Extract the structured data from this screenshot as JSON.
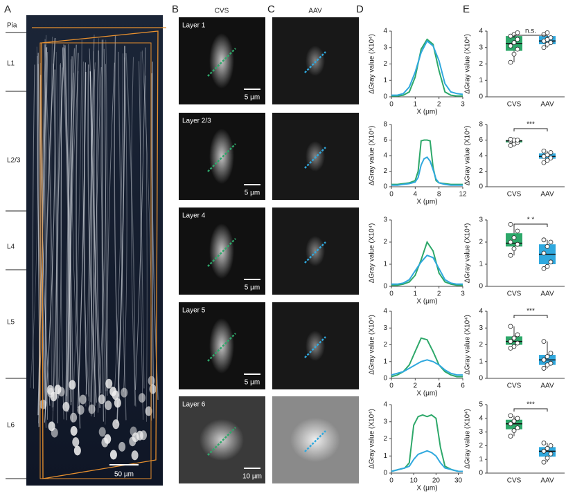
{
  "figure": {
    "panel_letters": [
      "A",
      "B",
      "C",
      "D",
      "E"
    ],
    "column_headers": [
      "CVS",
      "AAV"
    ],
    "cortex_layers": [
      "Pia",
      "L1",
      "L2/3",
      "L4",
      "L5",
      "L6"
    ],
    "scale_bar_a": "50 µm",
    "rows": [
      {
        "layer": "Layer 1",
        "scale_bar": "5 µm"
      },
      {
        "layer": "Layer 2/3",
        "scale_bar": "5 µm"
      },
      {
        "layer": "Layer 4",
        "scale_bar": "5 µm"
      },
      {
        "layer": "Layer 5",
        "scale_bar": "5 µm"
      },
      {
        "layer": "Layer 6",
        "scale_bar": "10 µm"
      }
    ]
  },
  "chart_data": [
    {
      "type": "line",
      "y_label": "ΔGray value (X10⁴)",
      "x_label": "X (μm)",
      "x": [
        0,
        0.25,
        0.5,
        0.75,
        1,
        1.25,
        1.5,
        1.75,
        2,
        2.25,
        2.5,
        2.75,
        3
      ],
      "xlim": [
        0,
        3
      ],
      "xticks": [
        0,
        1,
        2,
        3
      ],
      "ylim": [
        0,
        4
      ],
      "yticks": [
        0,
        1,
        2,
        3,
        4
      ],
      "series": [
        {
          "color": "#2ea86a",
          "values": [
            0.05,
            0.05,
            0.1,
            0.3,
            1.2,
            2.9,
            3.5,
            3.2,
            1.6,
            0.3,
            0.1,
            0.05,
            0.05
          ]
        },
        {
          "color": "#2fa8de",
          "values": [
            0.1,
            0.1,
            0.2,
            0.6,
            1.5,
            2.7,
            3.4,
            3.1,
            2.2,
            0.8,
            0.3,
            0.2,
            0.15
          ]
        }
      ]
    },
    {
      "type": "box",
      "y_label": "ΔGray value (X10⁴)",
      "categories": [
        "CVS",
        "AAV"
      ],
      "annotation": "n.s.",
      "ylim": [
        0,
        4
      ],
      "yticks": [
        0,
        1,
        2,
        3,
        4
      ],
      "boxes": [
        {
          "color": "#2ea86a",
          "whisker_low": 2.1,
          "q1": 2.8,
          "median": 3.25,
          "q3": 3.7,
          "whisker_high": 3.9,
          "points": [
            2.1,
            2.6,
            2.9,
            3.1,
            3.3,
            3.5,
            3.7,
            3.8,
            3.9
          ]
        },
        {
          "color": "#2fa8de",
          "whisker_low": 3.0,
          "q1": 3.2,
          "median": 3.4,
          "q3": 3.7,
          "whisker_high": 3.9,
          "points": [
            3.0,
            3.2,
            3.3,
            3.4,
            3.5,
            3.6,
            3.8,
            3.9
          ]
        }
      ]
    },
    {
      "type": "line",
      "y_label": "ΔGray value (X10⁴)",
      "x_label": "X (μm)",
      "x": [
        0,
        1,
        2,
        3,
        4,
        4.5,
        5,
        5.5,
        6,
        6.5,
        7,
        7.5,
        8,
        9,
        10,
        11,
        12
      ],
      "xlim": [
        0,
        12
      ],
      "xticks": [
        0,
        4,
        8,
        12
      ],
      "ylim": [
        0,
        8
      ],
      "yticks": [
        0,
        2,
        4,
        6,
        8
      ],
      "series": [
        {
          "color": "#2ea86a",
          "values": [
            0.3,
            0.3,
            0.4,
            0.5,
            0.8,
            2,
            5.9,
            6,
            6,
            5.9,
            2.5,
            0.8,
            0.5,
            0.4,
            0.3,
            0.3,
            0.3
          ]
        },
        {
          "color": "#2fa8de",
          "values": [
            0.2,
            0.2,
            0.3,
            0.4,
            0.6,
            1.2,
            2.8,
            3.6,
            3.8,
            3.3,
            2.2,
            1,
            0.5,
            0.3,
            0.2,
            0.2,
            0.2
          ]
        }
      ]
    },
    {
      "type": "box",
      "y_label": "ΔGray value (X10⁴)",
      "categories": [
        "CVS",
        "AAV"
      ],
      "annotation": "***",
      "ylim": [
        0,
        8
      ],
      "yticks": [
        0,
        2,
        4,
        6,
        8
      ],
      "boxes": [
        {
          "color": "#2ea86a",
          "whisker_low": 5.3,
          "q1": 5.7,
          "median": 5.9,
          "q3": 6.0,
          "whisker_high": 6.1,
          "points": [
            5.3,
            5.5,
            5.7,
            5.9,
            6.0,
            6.0,
            6.1
          ]
        },
        {
          "color": "#2fa8de",
          "whisker_low": 3.1,
          "q1": 3.6,
          "median": 3.9,
          "q3": 4.3,
          "whisker_high": 4.6,
          "points": [
            3.1,
            3.4,
            3.7,
            3.9,
            4.1,
            4.4,
            4.6
          ]
        }
      ]
    },
    {
      "type": "line",
      "y_label": "ΔGray value (X10⁴)",
      "x_label": "X (μm)",
      "x": [
        0,
        0.25,
        0.5,
        0.75,
        1,
        1.25,
        1.5,
        1.75,
        2,
        2.25,
        2.5,
        2.75,
        3
      ],
      "xlim": [
        0,
        3
      ],
      "xticks": [
        0,
        1,
        2,
        3
      ],
      "ylim": [
        0,
        3
      ],
      "yticks": [
        0,
        1,
        2,
        3
      ],
      "series": [
        {
          "color": "#2ea86a",
          "values": [
            0.05,
            0.05,
            0.1,
            0.2,
            0.5,
            1.2,
            2.0,
            1.6,
            0.6,
            0.2,
            0.1,
            0.05,
            0.05
          ]
        },
        {
          "color": "#2fa8de",
          "values": [
            0.1,
            0.1,
            0.15,
            0.3,
            0.7,
            1.1,
            1.4,
            1.3,
            0.8,
            0.3,
            0.15,
            0.1,
            0.1
          ]
        }
      ]
    },
    {
      "type": "box",
      "y_label": "ΔGray value (X10⁴)",
      "categories": [
        "CVS",
        "AAV"
      ],
      "annotation": "* *",
      "ylim": [
        0,
        3
      ],
      "yticks": [
        0,
        1,
        2,
        3
      ],
      "boxes": [
        {
          "color": "#2ea86a",
          "whisker_low": 1.4,
          "q1": 1.8,
          "median": 1.95,
          "q3": 2.4,
          "whisker_high": 2.8,
          "points": [
            1.4,
            1.7,
            1.9,
            2.0,
            2.2,
            2.5,
            2.8
          ]
        },
        {
          "color": "#2fa8de",
          "whisker_low": 0.8,
          "q1": 1.0,
          "median": 1.45,
          "q3": 1.9,
          "whisker_high": 2.1,
          "points": [
            0.8,
            0.9,
            1.1,
            1.5,
            1.8,
            2.0,
            2.1
          ]
        }
      ]
    },
    {
      "type": "line",
      "y_label": "ΔGray value (X10⁴)",
      "x_label": "X (μm)",
      "x": [
        0,
        0.5,
        1,
        1.5,
        2,
        2.5,
        3,
        3.5,
        4,
        4.5,
        5,
        5.5,
        6
      ],
      "xlim": [
        0,
        6
      ],
      "xticks": [
        0,
        2,
        4,
        6
      ],
      "ylim": [
        0,
        4
      ],
      "yticks": [
        0,
        1,
        2,
        3,
        4
      ],
      "series": [
        {
          "color": "#2ea86a",
          "values": [
            0.1,
            0.2,
            0.4,
            0.8,
            1.6,
            2.4,
            2.3,
            1.6,
            0.8,
            0.4,
            0.2,
            0.1,
            0.1
          ]
        },
        {
          "color": "#2fa8de",
          "values": [
            0.2,
            0.3,
            0.4,
            0.6,
            0.8,
            1.0,
            1.1,
            1.0,
            0.8,
            0.5,
            0.3,
            0.2,
            0.2
          ]
        }
      ]
    },
    {
      "type": "box",
      "y_label": "ΔGray value (X10⁴)",
      "categories": [
        "CVS",
        "AAV"
      ],
      "annotation": "***",
      "ylim": [
        0,
        4
      ],
      "yticks": [
        0,
        1,
        2,
        3,
        4
      ],
      "boxes": [
        {
          "color": "#2ea86a",
          "whisker_low": 1.8,
          "q1": 2.0,
          "median": 2.2,
          "q3": 2.5,
          "whisker_high": 3.1,
          "points": [
            1.8,
            1.9,
            2.1,
            2.2,
            2.4,
            2.6,
            3.1
          ]
        },
        {
          "color": "#2fa8de",
          "whisker_low": 0.6,
          "q1": 0.8,
          "median": 1.1,
          "q3": 1.4,
          "whisker_high": 2.2,
          "points": [
            0.6,
            0.8,
            0.9,
            1.1,
            1.3,
            1.5,
            2.2
          ]
        }
      ]
    },
    {
      "type": "line",
      "y_label": "ΔGray value (X10⁴)",
      "x_label": "X (μm)",
      "x": [
        0,
        3,
        6,
        8,
        10,
        12,
        14,
        16,
        18,
        20,
        22,
        24,
        27,
        30,
        32
      ],
      "xlim": [
        0,
        32
      ],
      "xticks": [
        0,
        10,
        20,
        30
      ],
      "ylim": [
        0,
        4
      ],
      "yticks": [
        0,
        1,
        2,
        3,
        4
      ],
      "series": [
        {
          "color": "#2ea86a",
          "values": [
            0.1,
            0.2,
            0.3,
            0.6,
            2.8,
            3.3,
            3.4,
            3.3,
            3.4,
            3.2,
            1.5,
            0.4,
            0.2,
            0.1,
            0.1
          ]
        },
        {
          "color": "#2fa8de",
          "values": [
            0.1,
            0.2,
            0.3,
            0.4,
            0.8,
            1.1,
            1.2,
            1.3,
            1.2,
            1.0,
            0.6,
            0.3,
            0.2,
            0.1,
            0.1
          ]
        }
      ]
    },
    {
      "type": "box",
      "y_label": "ΔGray value (X10⁴)",
      "categories": [
        "CVS",
        "AAV"
      ],
      "annotation": "***",
      "ylim": [
        0,
        5
      ],
      "yticks": [
        0,
        1,
        2,
        3,
        4,
        5
      ],
      "boxes": [
        {
          "color": "#2ea86a",
          "whisker_low": 2.7,
          "q1": 3.2,
          "median": 3.6,
          "q3": 3.9,
          "whisker_high": 4.2,
          "points": [
            2.7,
            3.1,
            3.3,
            3.6,
            3.8,
            4.0,
            4.2
          ]
        },
        {
          "color": "#2fa8de",
          "whisker_low": 0.8,
          "q1": 1.2,
          "median": 1.6,
          "q3": 1.9,
          "whisker_high": 2.2,
          "points": [
            0.8,
            1.1,
            1.4,
            1.6,
            1.8,
            2.0,
            2.2
          ]
        }
      ]
    }
  ]
}
